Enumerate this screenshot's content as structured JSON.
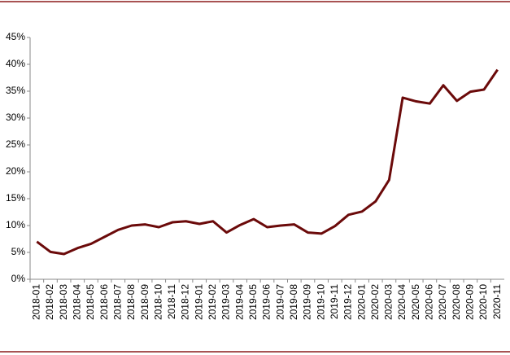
{
  "chart_data": {
    "type": "line",
    "categories": [
      "2018-01",
      "2018-02",
      "2018-03",
      "2018-04",
      "2018-05",
      "2018-06",
      "2018-07",
      "2018-08",
      "2018-09",
      "2018-10",
      "2018-11",
      "2018-12",
      "2019-01",
      "2019-02",
      "2019-03",
      "2019-04",
      "2019-05",
      "2019-06",
      "2019-07",
      "2019-08",
      "2019-09",
      "2019-10",
      "2019-11",
      "2019-12",
      "2020-01",
      "2020-02",
      "2020-03",
      "2020-04",
      "2020-05",
      "2020-06",
      "2020-07",
      "2020-08",
      "2020-09",
      "2020-10",
      "2020-11"
    ],
    "values": [
      7.0,
      5.1,
      4.7,
      5.8,
      6.6,
      7.9,
      9.2,
      10.0,
      10.2,
      9.7,
      10.6,
      10.8,
      10.3,
      10.8,
      8.7,
      10.1,
      11.2,
      9.7,
      10.0,
      10.2,
      8.7,
      8.5,
      9.9,
      12.0,
      12.6,
      14.5,
      18.5,
      33.8,
      33.1,
      32.7,
      36.1,
      33.2,
      34.9,
      35.3,
      39.0
    ],
    "color": "#6b0a0a",
    "ylim": [
      0,
      45
    ],
    "yticks": [
      {
        "value": 0,
        "label": "0%"
      },
      {
        "value": 5,
        "label": "5%"
      },
      {
        "value": 10,
        "label": "10%"
      },
      {
        "value": 15,
        "label": "15%"
      },
      {
        "value": 20,
        "label": "20%"
      },
      {
        "value": 25,
        "label": "25%"
      },
      {
        "value": 30,
        "label": "30%"
      },
      {
        "value": 35,
        "label": "35%"
      },
      {
        "value": 40,
        "label": "40%"
      },
      {
        "value": 45,
        "label": "45%"
      }
    ],
    "grid": false
  }
}
